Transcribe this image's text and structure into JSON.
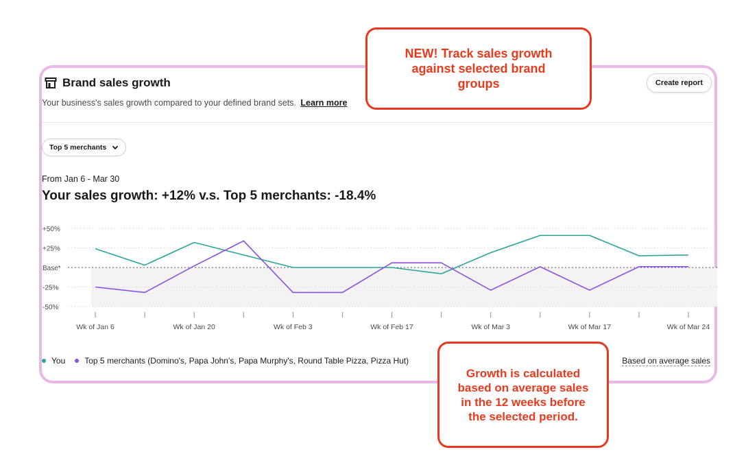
{
  "card": {
    "title": "Brand sales growth",
    "subtitle": "Your business's sales growth compared to your defined brand sets.",
    "learn_more": "Learn more",
    "create_report": "Create report",
    "dropdown_label": "Top 5 merchants",
    "range_label": "From Jan 6 - Mar 30",
    "headline": "Your sales growth: +12%  v.s.  Top 5 merchants: -18.4%"
  },
  "chart_data": {
    "type": "line",
    "y_tick_labels": [
      "+50%",
      "+25%",
      "Base*",
      "-25%",
      "-50%"
    ],
    "y_tick_values": [
      50,
      25,
      0,
      -25,
      -50
    ],
    "ylim": [
      -50,
      50
    ],
    "x_tick_labels": [
      "Wk of Jan 6",
      "Wk of Jan 20",
      "Wk of Feb 3",
      "Wk of Feb 17",
      "Wk of Mar 3",
      "Wk of Mar 17",
      "Wk of Mar 24"
    ],
    "x": [
      "Jan 6",
      "Jan 13",
      "Jan 20",
      "Jan 27",
      "Feb 3",
      "Feb 10",
      "Feb 17",
      "Feb 24",
      "Mar 3",
      "Mar 10",
      "Mar 17",
      "Mar 24",
      "Mar 30"
    ],
    "series": [
      {
        "name": "You",
        "color": "#2aa39c",
        "values": [
          24,
          3,
          32,
          16,
          0,
          0,
          0,
          -8,
          19,
          41,
          41,
          15,
          16
        ]
      },
      {
        "name": "Top 5 merchants (Domino's, Papa John's, Papa Murphy's, Round Table Pizza, Pizza Hut)",
        "color": "#8a4fe0",
        "values": [
          -25,
          -32,
          2,
          34,
          -32,
          -32,
          6,
          6,
          -29,
          1,
          -29,
          1,
          1
        ]
      }
    ],
    "grid": true,
    "baseline_shading": true,
    "legend_position": "bottom-left"
  },
  "legend_note": "Based on average sales",
  "callouts": {
    "new_feature": "NEW! Track sales growth against selected brand groups",
    "growth_note": "Growth is calculated based on average sales in the 12 weeks before the selected period."
  },
  "icons": {
    "title_icon": "store-icon",
    "dropdown_icon": "chevron-down-icon"
  },
  "colors": {
    "you": "#2aa39c",
    "merchants": "#8a4fe0",
    "callout": "#ea3a1e",
    "card_border": "#e8b8e8"
  }
}
